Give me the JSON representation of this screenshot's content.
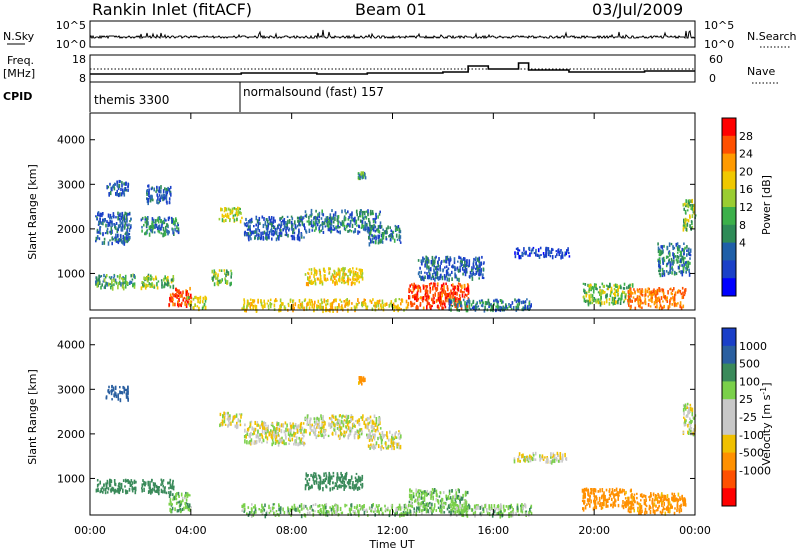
{
  "header": {
    "station": "Rankin Inlet (fitACF)",
    "beam": "Beam 01",
    "date": "03/Jul/2009"
  },
  "panels": {
    "nsky": {
      "label": "N.Sky",
      "left_ticks": [
        "10^5",
        "10^0"
      ],
      "right_ticks": [
        "10^5",
        "10^0"
      ],
      "right_label": "N.Search"
    },
    "freq": {
      "label_top": "Freq.",
      "label_bottom": "[MHz]",
      "left_ticks": [
        "18",
        "8"
      ],
      "right_ticks": [
        "60",
        "0"
      ],
      "right_label": "Nave"
    },
    "cpid": {
      "label": "CPID",
      "programs": [
        {
          "name": "themis 3300",
          "start_hour": 0
        },
        {
          "name": "normalsound (fast) 157",
          "start_hour": 6
        }
      ]
    }
  },
  "power_colorbar": {
    "label": "Power [dB]",
    "ticks": [
      "28",
      "24",
      "20",
      "16",
      "12",
      "8",
      "4"
    ],
    "colors": [
      "#ff0000",
      "#ff5000",
      "#ff9a00",
      "#f0c800",
      "#9acd32",
      "#3cb04a",
      "#2e8b57",
      "#1f5fa8",
      "#1a40c8",
      "#0000ff"
    ]
  },
  "velocity_colorbar": {
    "label": "Velocity [m s^-1]",
    "label_main": "Velocity",
    "label_units": "[m s",
    "label_sup": "-1",
    "label_close": "]",
    "ticks": [
      "1000",
      "500",
      "100",
      "25",
      "-25",
      "-100",
      "-500",
      "-1000"
    ],
    "colors": [
      "#1a3fc8",
      "#2a5fa0",
      "#3a8a5a",
      "#7ad04a",
      "#c8c8c8",
      "#c8c8c8",
      "#f0c000",
      "#ff9000",
      "#ff5000",
      "#ff0000"
    ]
  },
  "chart_data": [
    {
      "type": "heatmap",
      "title": "Power",
      "ylabel": "Slant Range [km]",
      "yticks": [
        1000,
        2000,
        3000,
        4000
      ],
      "ylim": [
        180,
        4600
      ],
      "xlim": [
        0,
        24
      ],
      "zlim": [
        0,
        30
      ],
      "regions": [
        {
          "x0": 0.2,
          "x1": 1.6,
          "y0": 1700,
          "y1": 2400,
          "v": 8
        },
        {
          "x0": 0.2,
          "x1": 1.8,
          "y0": 700,
          "y1": 1000,
          "v": 12
        },
        {
          "x0": 0.6,
          "x1": 1.5,
          "y0": 2800,
          "y1": 3100,
          "v": 8
        },
        {
          "x0": 2.0,
          "x1": 3.3,
          "y0": 700,
          "y1": 1000,
          "v": 14
        },
        {
          "x0": 2.0,
          "x1": 3.5,
          "y0": 1900,
          "y1": 2300,
          "v": 10
        },
        {
          "x0": 2.2,
          "x1": 3.2,
          "y0": 2600,
          "y1": 3000,
          "v": 8
        },
        {
          "x0": 3.1,
          "x1": 4.0,
          "y0": 300,
          "y1": 700,
          "v": 27
        },
        {
          "x0": 3.8,
          "x1": 4.6,
          "y0": 250,
          "y1": 500,
          "v": 16
        },
        {
          "x0": 4.8,
          "x1": 5.6,
          "y0": 800,
          "y1": 1100,
          "v": 14
        },
        {
          "x0": 5.1,
          "x1": 6.0,
          "y0": 2200,
          "y1": 2500,
          "v": 16
        },
        {
          "x0": 6.1,
          "x1": 8.5,
          "y0": 1800,
          "y1": 2300,
          "v": 8
        },
        {
          "x0": 6.0,
          "x1": 12.6,
          "y0": 200,
          "y1": 450,
          "v": 18
        },
        {
          "x0": 8.5,
          "x1": 10.8,
          "y0": 800,
          "y1": 1150,
          "v": 18
        },
        {
          "x0": 8.5,
          "x1": 11.5,
          "y0": 1950,
          "y1": 2450,
          "v": 10
        },
        {
          "x0": 10.6,
          "x1": 10.9,
          "y0": 3150,
          "y1": 3300,
          "v": 12
        },
        {
          "x0": 11.0,
          "x1": 12.3,
          "y0": 1700,
          "y1": 2100,
          "v": 10
        },
        {
          "x0": 12.6,
          "x1": 15.0,
          "y0": 250,
          "y1": 800,
          "v": 27
        },
        {
          "x0": 13.0,
          "x1": 15.6,
          "y0": 900,
          "y1": 1400,
          "v": 8
        },
        {
          "x0": 14.2,
          "x1": 17.5,
          "y0": 200,
          "y1": 450,
          "v": 10
        },
        {
          "x0": 16.8,
          "x1": 19.0,
          "y0": 1400,
          "y1": 1600,
          "v": 6
        },
        {
          "x0": 19.5,
          "x1": 21.5,
          "y0": 350,
          "y1": 800,
          "v": 14
        },
        {
          "x0": 21.3,
          "x1": 23.6,
          "y0": 250,
          "y1": 700,
          "v": 24
        },
        {
          "x0": 22.5,
          "x1": 23.8,
          "y0": 1000,
          "y1": 1700,
          "v": 10
        },
        {
          "x0": 23.5,
          "x1": 24.0,
          "y0": 2000,
          "y1": 2700,
          "v": 14
        }
      ]
    },
    {
      "type": "heatmap",
      "title": "Velocity",
      "ylabel": "Slant Range [km]",
      "xlabel": "Time UT",
      "xticks": [
        "00:00",
        "04:00",
        "08:00",
        "12:00",
        "16:00",
        "20:00",
        "00:00"
      ],
      "yticks": [
        1000,
        2000,
        3000,
        4000
      ],
      "ylim": [
        180,
        4600
      ],
      "xlim": [
        0,
        24
      ],
      "zlim": [
        -1000,
        1000
      ],
      "regions": [
        {
          "x0": 0.2,
          "x1": 1.8,
          "y0": 700,
          "y1": 1000,
          "v": 300
        },
        {
          "x0": 0.6,
          "x1": 1.5,
          "y0": 2800,
          "y1": 3100,
          "v": 700
        },
        {
          "x0": 2.0,
          "x1": 3.3,
          "y0": 700,
          "y1": 1000,
          "v": 300
        },
        {
          "x0": 3.1,
          "x1": 4.0,
          "y0": 300,
          "y1": 700,
          "v": 80
        },
        {
          "x0": 5.1,
          "x1": 6.0,
          "y0": 2200,
          "y1": 2500,
          "v": 0
        },
        {
          "x0": 6.1,
          "x1": 8.5,
          "y0": 1800,
          "y1": 2300,
          "v": 0
        },
        {
          "x0": 6.0,
          "x1": 12.6,
          "y0": 200,
          "y1": 450,
          "v": 60
        },
        {
          "x0": 8.5,
          "x1": 10.8,
          "y0": 800,
          "y1": 1150,
          "v": 300
        },
        {
          "x0": 8.5,
          "x1": 11.5,
          "y0": 1950,
          "y1": 2450,
          "v": 0
        },
        {
          "x0": 10.6,
          "x1": 10.9,
          "y0": 3150,
          "y1": 3300,
          "v": -150
        },
        {
          "x0": 11.0,
          "x1": 12.3,
          "y0": 1700,
          "y1": 2100,
          "v": 0
        },
        {
          "x0": 12.6,
          "x1": 15.0,
          "y0": 250,
          "y1": 800,
          "v": 70
        },
        {
          "x0": 14.2,
          "x1": 17.5,
          "y0": 200,
          "y1": 450,
          "v": 60
        },
        {
          "x0": 16.8,
          "x1": 19.0,
          "y0": 1400,
          "y1": 1600,
          "v": 0
        },
        {
          "x0": 19.5,
          "x1": 21.5,
          "y0": 350,
          "y1": 800,
          "v": -150
        },
        {
          "x0": 21.3,
          "x1": 23.6,
          "y0": 250,
          "y1": 700,
          "v": -150
        },
        {
          "x0": 23.5,
          "x1": 24.0,
          "y0": 2000,
          "y1": 2700,
          "v": 0
        }
      ]
    }
  ]
}
